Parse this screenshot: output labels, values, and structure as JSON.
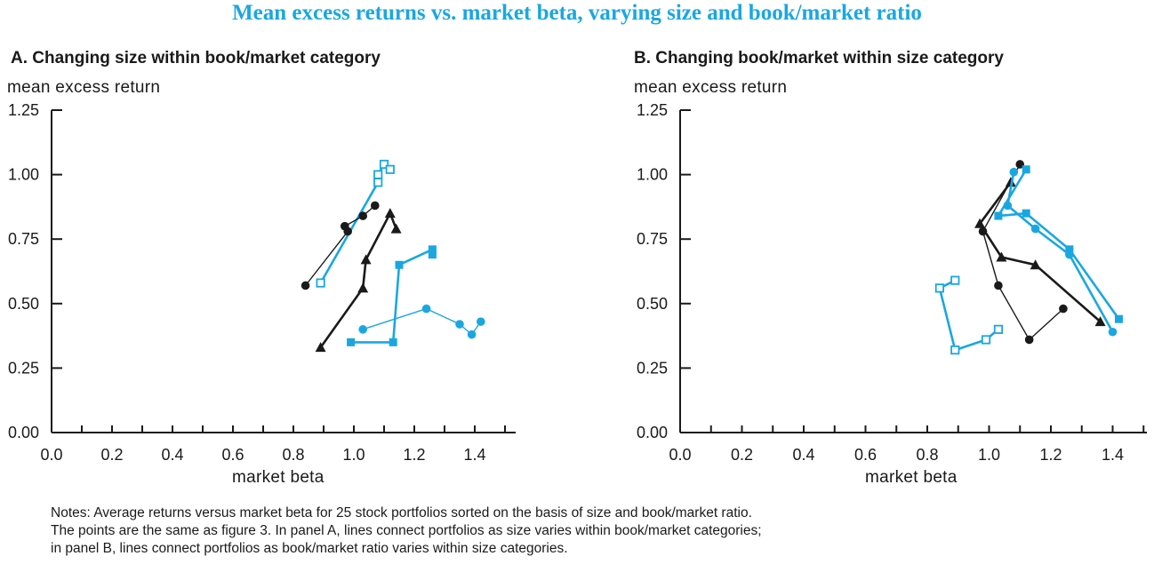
{
  "title": "Mean excess returns vs. market beta, varying size and book/market ratio",
  "colors": {
    "black": "#1a1a1a",
    "blue": "#1aa7e1",
    "title": "#1aa7e1"
  },
  "notes": [
    "Notes: Average returns versus market beta for 25 stock portfolios sorted on the basis of size and book/market ratio.",
    "The points are the same as figure 3. In panel A, lines connect portfolios as size varies within book/market categories;",
    "in panel B, lines connect portfolios as book/market ratio varies within size categories."
  ],
  "chart_data": [
    {
      "type": "line",
      "title": "A. Changing size within book/market category",
      "ylabel": "mean excess return",
      "xlabel": "market beta",
      "xlim": [
        0.0,
        1.5
      ],
      "ylim": [
        0.0,
        1.25
      ],
      "xticks": [
        "0.0",
        "0.2",
        "0.4",
        "0.6",
        "0.8",
        "1.0",
        "1.2",
        "1.4"
      ],
      "yticks": [
        "0.00",
        "0.25",
        "0.50",
        "0.75",
        "1.00",
        "1.25"
      ],
      "grid": false,
      "series": [
        {
          "marker": "hollow-square",
          "color": "blue",
          "points": [
            [
              0.89,
              0.58
            ],
            [
              1.08,
              0.97
            ],
            [
              1.08,
              1.0
            ],
            [
              1.1,
              1.04
            ],
            [
              1.12,
              1.02
            ]
          ]
        },
        {
          "marker": "circle",
          "color": "black",
          "points": [
            [
              0.84,
              0.57
            ],
            [
              0.98,
              0.78
            ],
            [
              0.97,
              0.8
            ],
            [
              1.03,
              0.84
            ],
            [
              1.07,
              0.88
            ]
          ]
        },
        {
          "marker": "triangle",
          "color": "black",
          "points": [
            [
              0.89,
              0.33
            ],
            [
              1.03,
              0.56
            ],
            [
              1.04,
              0.67
            ],
            [
              1.12,
              0.85
            ],
            [
              1.14,
              0.79
            ]
          ]
        },
        {
          "marker": "square",
          "color": "blue",
          "points": [
            [
              0.99,
              0.35
            ],
            [
              1.13,
              0.35
            ],
            [
              1.15,
              0.65
            ],
            [
              1.26,
              0.71
            ],
            [
              1.26,
              0.69
            ]
          ]
        },
        {
          "marker": "circle",
          "color": "blue",
          "points": [
            [
              1.03,
              0.4
            ],
            [
              1.24,
              0.48
            ],
            [
              1.35,
              0.42
            ],
            [
              1.39,
              0.38
            ],
            [
              1.42,
              0.43
            ]
          ]
        }
      ]
    },
    {
      "type": "line",
      "title": "B. Changing book/market within size category",
      "ylabel": "mean excess return",
      "xlabel": "market beta",
      "xlim": [
        0.0,
        1.5
      ],
      "ylim": [
        0.0,
        1.25
      ],
      "xticks": [
        "0.0",
        "0.2",
        "0.4",
        "0.6",
        "0.8",
        "1.0",
        "1.2",
        "1.4"
      ],
      "yticks": [
        "0.00",
        "0.25",
        "0.50",
        "0.75",
        "1.00",
        "1.25"
      ],
      "grid": false,
      "series": [
        {
          "marker": "hollow-square",
          "color": "blue",
          "points": [
            [
              0.89,
              0.59
            ],
            [
              0.84,
              0.56
            ],
            [
              0.89,
              0.32
            ],
            [
              0.99,
              0.36
            ],
            [
              1.03,
              0.4
            ]
          ]
        },
        {
          "marker": "circle",
          "color": "black",
          "points": [
            [
              1.1,
              1.04
            ],
            [
              0.98,
              0.78
            ],
            [
              1.03,
              0.57
            ],
            [
              1.13,
              0.36
            ],
            [
              1.24,
              0.48
            ]
          ]
        },
        {
          "marker": "triangle",
          "color": "black",
          "points": [
            [
              1.07,
              0.97
            ],
            [
              0.97,
              0.81
            ],
            [
              1.04,
              0.68
            ],
            [
              1.15,
              0.65
            ],
            [
              1.36,
              0.43
            ]
          ]
        },
        {
          "marker": "square",
          "color": "blue",
          "points": [
            [
              1.12,
              1.02
            ],
            [
              1.03,
              0.84
            ],
            [
              1.12,
              0.85
            ],
            [
              1.26,
              0.71
            ],
            [
              1.42,
              0.44
            ]
          ]
        },
        {
          "marker": "circle",
          "color": "blue",
          "points": [
            [
              1.08,
              1.01
            ],
            [
              1.06,
              0.88
            ],
            [
              1.15,
              0.79
            ],
            [
              1.26,
              0.69
            ],
            [
              1.4,
              0.39
            ]
          ]
        }
      ]
    }
  ]
}
